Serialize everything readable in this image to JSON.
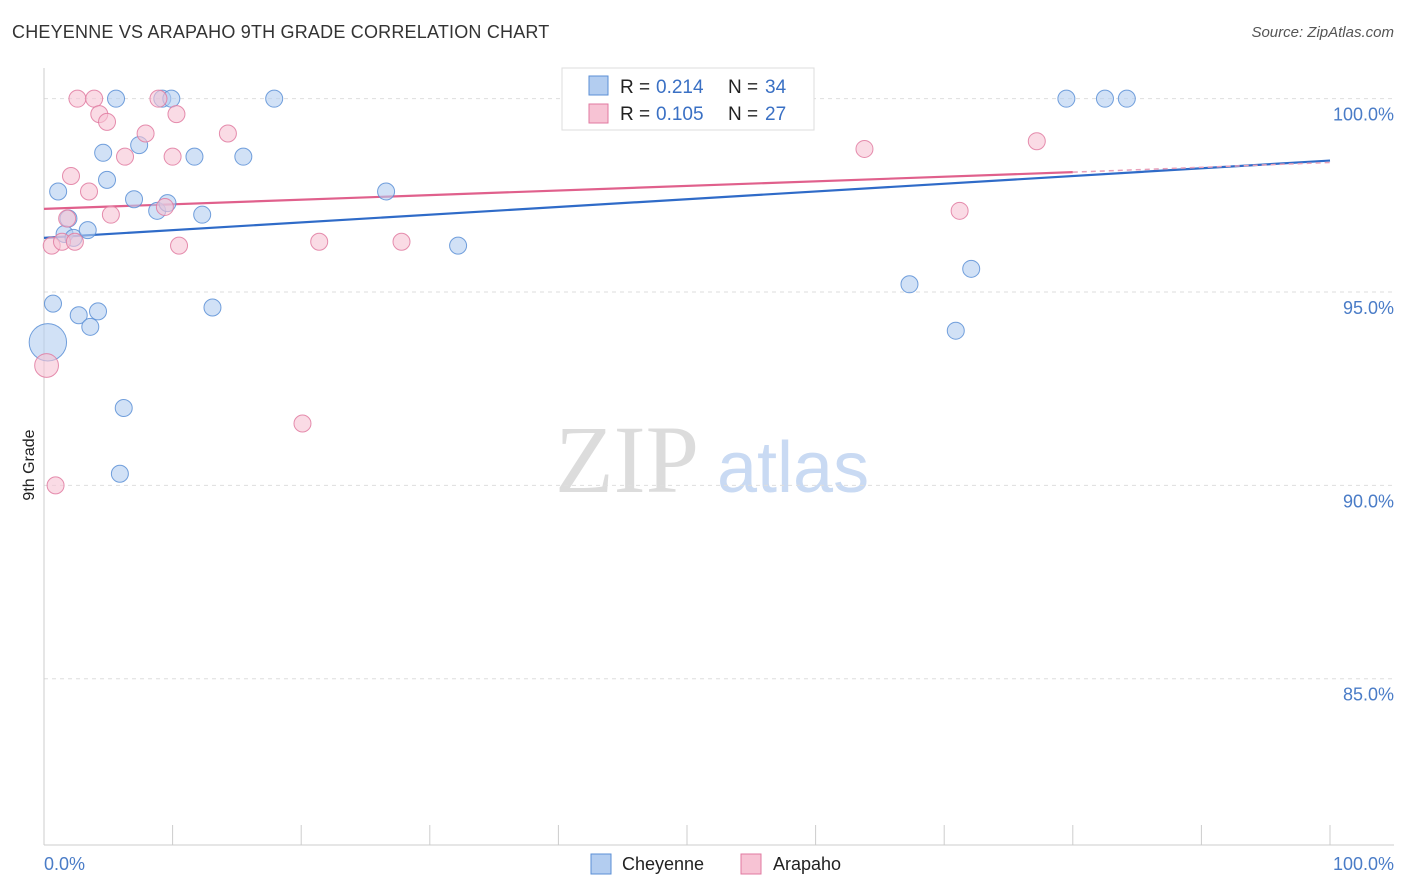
{
  "title": "CHEYENNE VS ARAPAHO 9TH GRADE CORRELATION CHART",
  "source": "Source: ZipAtlas.com",
  "watermark": {
    "zip": "ZIP",
    "atlas": "atlas"
  },
  "chart_data": {
    "type": "scatter",
    "title": "CHEYENNE VS ARAPAHO 9TH GRADE CORRELATION CHART",
    "xlabel": "",
    "ylabel": "9th Grade",
    "xlim": [
      0,
      100
    ],
    "ylim": [
      80.7,
      101.0
    ],
    "x_tick_labels": [
      "0.0%",
      "100.0%"
    ],
    "y_ticks": [
      85.0,
      90.0,
      95.0,
      100.0
    ],
    "y_tick_labels": [
      "85.0%",
      "90.0%",
      "95.0%",
      "100.0%"
    ],
    "grid": true,
    "legend_position": "top-center",
    "series": [
      {
        "name": "Cheyenne",
        "color": "#5b8fd6",
        "fill": "#b3cdf0",
        "R": "0.214",
        "N": "34",
        "trend": {
          "x": [
            0,
            100
          ],
          "y": [
            96.4,
            98.4
          ]
        },
        "points": [
          {
            "x": 0.3,
            "y": 93.7,
            "s": 2.2
          },
          {
            "x": 0.7,
            "y": 94.7,
            "s": 1
          },
          {
            "x": 1.1,
            "y": 97.6,
            "s": 1
          },
          {
            "x": 1.6,
            "y": 96.5,
            "s": 1
          },
          {
            "x": 1.9,
            "y": 96.9,
            "s": 1
          },
          {
            "x": 2.3,
            "y": 96.4,
            "s": 1
          },
          {
            "x": 2.7,
            "y": 94.4,
            "s": 1
          },
          {
            "x": 3.4,
            "y": 96.6,
            "s": 1
          },
          {
            "x": 3.6,
            "y": 94.1,
            "s": 1
          },
          {
            "x": 4.2,
            "y": 94.5,
            "s": 1
          },
          {
            "x": 4.6,
            "y": 98.6,
            "s": 1
          },
          {
            "x": 4.9,
            "y": 97.9,
            "s": 1
          },
          {
            "x": 5.6,
            "y": 100.0,
            "s": 1
          },
          {
            "x": 5.9,
            "y": 90.3,
            "s": 1
          },
          {
            "x": 6.2,
            "y": 92.0,
            "s": 1
          },
          {
            "x": 7.0,
            "y": 97.4,
            "s": 1
          },
          {
            "x": 7.4,
            "y": 98.8,
            "s": 1
          },
          {
            "x": 8.8,
            "y": 97.1,
            "s": 1
          },
          {
            "x": 9.2,
            "y": 100.0,
            "s": 1
          },
          {
            "x": 9.6,
            "y": 97.3,
            "s": 1
          },
          {
            "x": 9.9,
            "y": 100.0,
            "s": 1
          },
          {
            "x": 11.7,
            "y": 98.5,
            "s": 1
          },
          {
            "x": 12.3,
            "y": 97.0,
            "s": 1
          },
          {
            "x": 13.1,
            "y": 94.6,
            "s": 1
          },
          {
            "x": 15.5,
            "y": 98.5,
            "s": 1
          },
          {
            "x": 17.9,
            "y": 100.0,
            "s": 1
          },
          {
            "x": 26.6,
            "y": 97.6,
            "s": 1
          },
          {
            "x": 32.2,
            "y": 96.2,
            "s": 1
          },
          {
            "x": 67.3,
            "y": 95.2,
            "s": 1
          },
          {
            "x": 70.9,
            "y": 94.0,
            "s": 1
          },
          {
            "x": 72.1,
            "y": 95.6,
            "s": 1
          },
          {
            "x": 79.5,
            "y": 100.0,
            "s": 1
          },
          {
            "x": 82.5,
            "y": 100.0,
            "s": 1
          },
          {
            "x": 84.2,
            "y": 100.0,
            "s": 1
          }
        ]
      },
      {
        "name": "Arapaho",
        "color": "#e07aa0",
        "fill": "#f7c3d4",
        "R": "0.105",
        "N": "27",
        "trend": {
          "x": [
            0,
            80
          ],
          "y": [
            97.15,
            98.1
          ]
        },
        "trend_dashed_ext": {
          "x": [
            80,
            100
          ],
          "y": [
            98.1,
            98.35
          ]
        },
        "points": [
          {
            "x": 0.2,
            "y": 93.1,
            "s": 1.4
          },
          {
            "x": 0.6,
            "y": 96.2,
            "s": 1
          },
          {
            "x": 0.9,
            "y": 90.0,
            "s": 1
          },
          {
            "x": 1.4,
            "y": 96.3,
            "s": 1
          },
          {
            "x": 1.8,
            "y": 96.9,
            "s": 1
          },
          {
            "x": 2.1,
            "y": 98.0,
            "s": 1
          },
          {
            "x": 2.4,
            "y": 96.3,
            "s": 1
          },
          {
            "x": 2.6,
            "y": 100.0,
            "s": 1
          },
          {
            "x": 3.5,
            "y": 97.6,
            "s": 1
          },
          {
            "x": 3.9,
            "y": 100.0,
            "s": 1
          },
          {
            "x": 4.3,
            "y": 99.6,
            "s": 1
          },
          {
            "x": 4.9,
            "y": 99.4,
            "s": 1
          },
          {
            "x": 5.2,
            "y": 97.0,
            "s": 1
          },
          {
            "x": 6.3,
            "y": 98.5,
            "s": 1
          },
          {
            "x": 7.9,
            "y": 99.1,
            "s": 1
          },
          {
            "x": 8.9,
            "y": 100.0,
            "s": 1
          },
          {
            "x": 9.4,
            "y": 97.2,
            "s": 1
          },
          {
            "x": 10.0,
            "y": 98.5,
            "s": 1
          },
          {
            "x": 10.3,
            "y": 99.6,
            "s": 1
          },
          {
            "x": 10.5,
            "y": 96.2,
            "s": 1
          },
          {
            "x": 14.3,
            "y": 99.1,
            "s": 1
          },
          {
            "x": 20.1,
            "y": 91.6,
            "s": 1
          },
          {
            "x": 21.4,
            "y": 96.3,
            "s": 1
          },
          {
            "x": 27.8,
            "y": 96.3,
            "s": 1
          },
          {
            "x": 63.8,
            "y": 98.7,
            "s": 1
          },
          {
            "x": 71.2,
            "y": 97.1,
            "s": 1
          },
          {
            "x": 77.2,
            "y": 98.9,
            "s": 1
          }
        ]
      }
    ]
  }
}
